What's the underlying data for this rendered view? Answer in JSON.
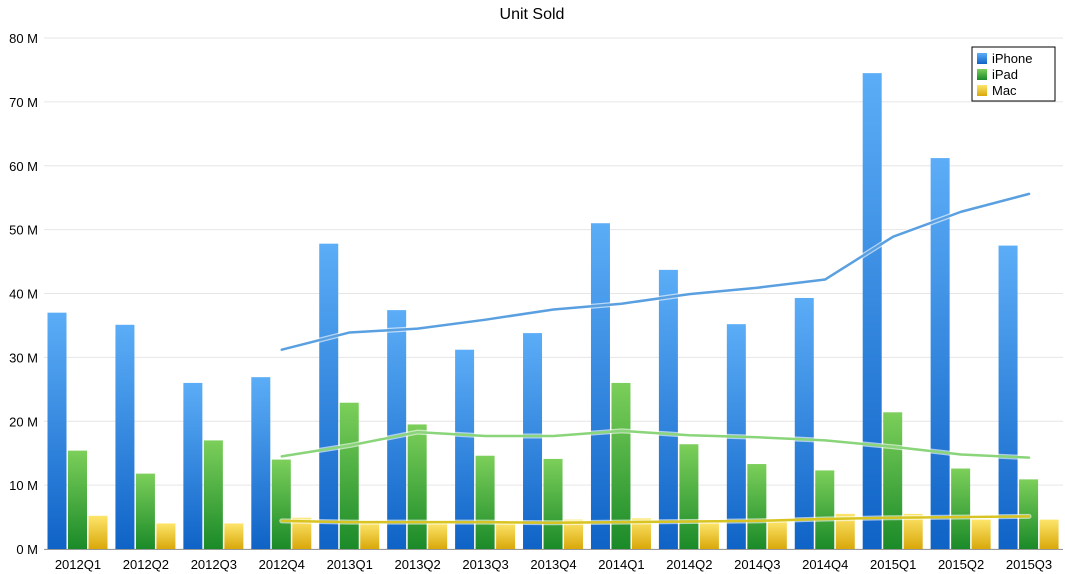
{
  "chart_data": {
    "type": "bar",
    "title": "Unit Sold",
    "xlabel": "",
    "ylabel": "",
    "ylim": [
      0,
      80
    ],
    "y_tick_values": [
      0,
      10,
      20,
      30,
      40,
      50,
      60,
      70,
      80
    ],
    "y_tick_labels": [
      "0 M",
      "10 M",
      "20 M",
      "30 M",
      "40 M",
      "50 M",
      "60 M",
      "70 M",
      "80 M"
    ],
    "grid": true,
    "legend_position": "top-right",
    "categories": [
      "2012Q1",
      "2012Q2",
      "2012Q3",
      "2012Q4",
      "2013Q1",
      "2013Q2",
      "2013Q3",
      "2013Q4",
      "2014Q1",
      "2014Q2",
      "2014Q3",
      "2014Q4",
      "2015Q1",
      "2015Q2",
      "2015Q3"
    ],
    "series": [
      {
        "name": "iPhone",
        "color": "#3a8ee6",
        "values": [
          37.0,
          35.1,
          26.0,
          26.9,
          47.8,
          37.4,
          31.2,
          33.8,
          51.0,
          43.7,
          35.2,
          39.3,
          74.5,
          61.2,
          47.5
        ]
      },
      {
        "name": "iPad",
        "color": "#3ea83a",
        "values": [
          15.4,
          11.8,
          17.0,
          14.0,
          22.9,
          19.5,
          14.6,
          14.1,
          26.0,
          16.4,
          13.3,
          12.3,
          21.4,
          12.6,
          10.9
        ]
      },
      {
        "name": "Mac",
        "color": "#e8c21a",
        "values": [
          5.2,
          4.0,
          4.0,
          4.9,
          4.1,
          4.0,
          4.1,
          4.6,
          4.8,
          4.1,
          4.4,
          5.5,
          5.5,
          4.6,
          4.6
        ]
      }
    ],
    "trendlines": [
      {
        "series": "iPhone",
        "color": "#5aa0e0",
        "start_index": 3,
        "values": [
          31.2,
          33.9,
          34.5,
          35.9,
          37.5,
          38.4,
          39.9,
          40.9,
          42.2,
          48.9,
          52.8,
          55.6
        ]
      },
      {
        "series": "iPad",
        "color": "#8ad47a",
        "start_index": 3,
        "values": [
          14.5,
          16.2,
          18.3,
          17.7,
          17.7,
          18.5,
          17.8,
          17.5,
          17.0,
          16.0,
          14.8,
          14.3
        ]
      },
      {
        "series": "Mac",
        "color": "#d8c420",
        "start_index": 3,
        "values": [
          4.4,
          4.2,
          4.2,
          4.2,
          4.1,
          4.2,
          4.3,
          4.4,
          4.7,
          4.9,
          5.0,
          5.1
        ]
      }
    ]
  }
}
